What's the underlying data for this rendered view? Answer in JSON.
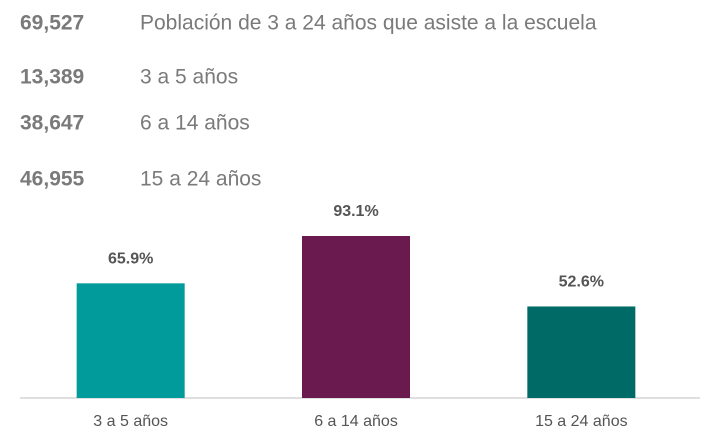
{
  "stats": [
    {
      "number": "69,527",
      "label": "Población de 3 a 24 años que asiste a la escuela"
    },
    {
      "number": "13,389",
      "label": "3 a 5 años"
    },
    {
      "number": "38,647",
      "label": "6 a 14 años"
    },
    {
      "number": "46,955",
      "label": "15 a 24 años"
    }
  ],
  "chart_data": {
    "type": "bar",
    "categories": [
      "3 a 5 años",
      "6 a 14 años",
      "15 a 24 años"
    ],
    "values": [
      65.9,
      93.1,
      52.6
    ],
    "value_labels": [
      "65.9%",
      "93.1%",
      "52.6%"
    ],
    "colors": [
      "#009b9a",
      "#6a1a4f",
      "#006a66"
    ]
  }
}
